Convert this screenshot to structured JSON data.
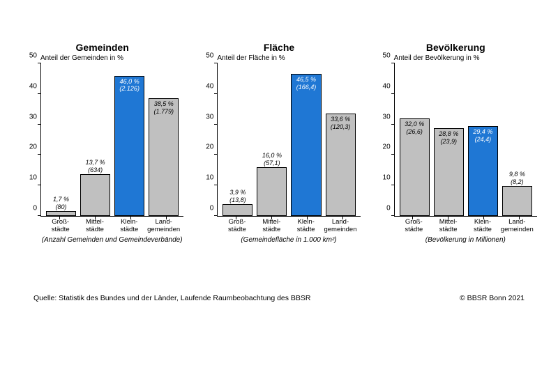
{
  "panels": [
    {
      "title": "Gemeinden",
      "subtitle": "Anteil der Gemeinden in %",
      "note": "(Anzahl Gemeinden und Gemeindeverbände)",
      "ylim": [
        0,
        50
      ],
      "ytick_step": 10,
      "categories": [
        "Groß-\nstädte",
        "Mittel-\nstädte",
        "Klein-\nstädte",
        "Land-\ngemeinden"
      ],
      "bars": [
        {
          "value": 1.7,
          "label_pct": "1,7 %",
          "label_abs": "(80)",
          "color": "#c0c0c0",
          "label_pos": "top",
          "text_color": "#000000"
        },
        {
          "value": 13.7,
          "label_pct": "13,7 %",
          "label_abs": "(634)",
          "color": "#c0c0c0",
          "label_pos": "top",
          "text_color": "#000000"
        },
        {
          "value": 46.0,
          "label_pct": "46,0 %",
          "label_abs": "(2.126)",
          "color": "#1f77d4",
          "label_pos": "inside",
          "text_color": "#ffffff"
        },
        {
          "value": 38.5,
          "label_pct": "38,5 %",
          "label_abs": "(1.779)",
          "color": "#c0c0c0",
          "label_pos": "inside",
          "text_color": "#000000"
        }
      ]
    },
    {
      "title": "Fläche",
      "subtitle": "Anteil der Fläche in %",
      "note": "(Gemeindefläche in 1.000 km²)",
      "ylim": [
        0,
        50
      ],
      "ytick_step": 10,
      "categories": [
        "Groß-\nstädte",
        "Mittel-\nstädte",
        "Klein-\nstädte",
        "Land-\ngemeinden"
      ],
      "bars": [
        {
          "value": 3.9,
          "label_pct": "3,9 %",
          "label_abs": "(13,8)",
          "color": "#c0c0c0",
          "label_pos": "top",
          "text_color": "#000000"
        },
        {
          "value": 16.0,
          "label_pct": "16,0 %",
          "label_abs": "(57,1)",
          "color": "#c0c0c0",
          "label_pos": "top",
          "text_color": "#000000"
        },
        {
          "value": 46.5,
          "label_pct": "46,5 %",
          "label_abs": "(166,4)",
          "color": "#1f77d4",
          "label_pos": "inside",
          "text_color": "#ffffff"
        },
        {
          "value": 33.6,
          "label_pct": "33,6 %",
          "label_abs": "(120,3)",
          "color": "#c0c0c0",
          "label_pos": "inside",
          "text_color": "#000000"
        }
      ]
    },
    {
      "title": "Bevölkerung",
      "subtitle": "Anteil der Bevölkerung in %",
      "note": "(Bevölkerung in Millionen)",
      "ylim": [
        0,
        50
      ],
      "ytick_step": 10,
      "categories": [
        "Groß-\nstädte",
        "Mittel-\nstädte",
        "Klein-\nstädte",
        "Land-\ngemeinden"
      ],
      "bars": [
        {
          "value": 32.0,
          "label_pct": "32,0 %",
          "label_abs": "(26,6)",
          "color": "#c0c0c0",
          "label_pos": "inside",
          "text_color": "#000000"
        },
        {
          "value": 28.8,
          "label_pct": "28,8 %",
          "label_abs": "(23,9)",
          "color": "#c0c0c0",
          "label_pos": "inside",
          "text_color": "#000000"
        },
        {
          "value": 29.4,
          "label_pct": "29,4 %",
          "label_abs": "(24,4)",
          "color": "#1f77d4",
          "label_pos": "inside",
          "text_color": "#ffffff"
        },
        {
          "value": 9.8,
          "label_pct": "9,8 %",
          "label_abs": "(8,2)",
          "color": "#c0c0c0",
          "label_pos": "top",
          "text_color": "#000000"
        }
      ]
    }
  ],
  "footer": {
    "source": "Quelle:  Statistik des Bundes und der Länder, Laufende Raumbeobachtung des BBSR",
    "copyright": "© BBSR Bonn 2021"
  },
  "colors": {
    "background": "#ffffff",
    "axis": "#000000",
    "bar_default": "#c0c0c0",
    "bar_highlight": "#1f77d4"
  }
}
